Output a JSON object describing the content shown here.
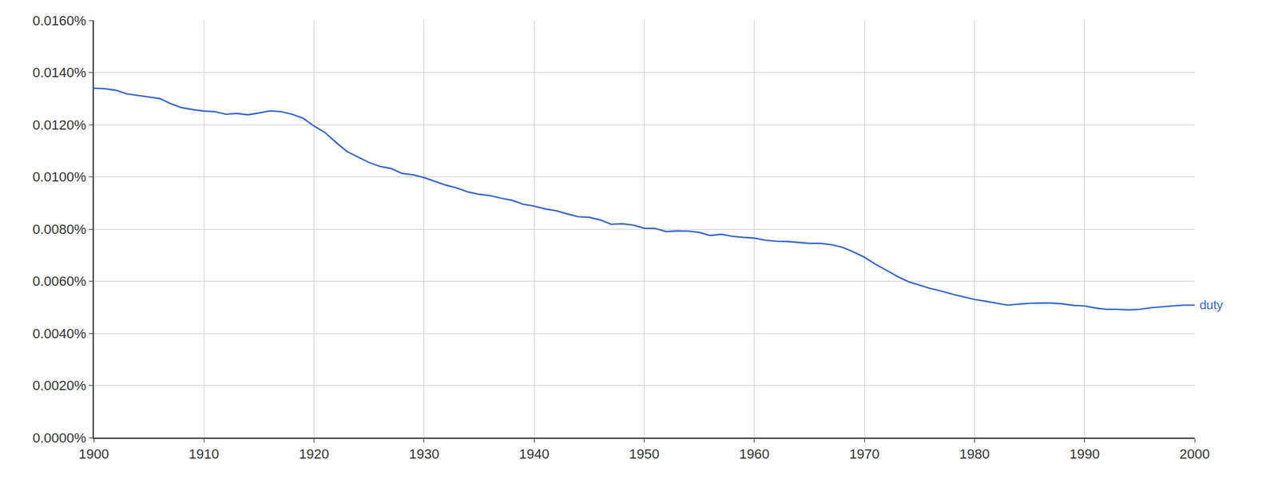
{
  "chart_data": {
    "type": "line",
    "x": [
      1900,
      1901,
      1902,
      1903,
      1904,
      1905,
      1906,
      1907,
      1908,
      1909,
      1910,
      1911,
      1912,
      1913,
      1914,
      1915,
      1916,
      1917,
      1918,
      1919,
      1920,
      1921,
      1922,
      1923,
      1924,
      1925,
      1926,
      1927,
      1928,
      1929,
      1930,
      1931,
      1932,
      1933,
      1934,
      1935,
      1936,
      1937,
      1938,
      1939,
      1940,
      1941,
      1942,
      1943,
      1944,
      1945,
      1946,
      1947,
      1948,
      1949,
      1950,
      1951,
      1952,
      1953,
      1954,
      1955,
      1956,
      1957,
      1958,
      1959,
      1960,
      1961,
      1962,
      1963,
      1964,
      1965,
      1966,
      1967,
      1968,
      1969,
      1970,
      1971,
      1972,
      1973,
      1974,
      1975,
      1976,
      1977,
      1978,
      1979,
      1980,
      1981,
      1982,
      1983,
      1984,
      1985,
      1986,
      1987,
      1988,
      1989,
      1990,
      1991,
      1992,
      1993,
      1994,
      1995,
      1996,
      1997,
      1998,
      1999,
      2000
    ],
    "series": [
      {
        "name": "duty",
        "color": "#3366cc",
        "values": [
          0.0134,
          0.01338,
          0.01332,
          0.01318,
          0.01312,
          0.01306,
          0.013,
          0.0128,
          0.01265,
          0.01258,
          0.01252,
          0.0125,
          0.0124,
          0.01243,
          0.01238,
          0.01245,
          0.01253,
          0.0125,
          0.0124,
          0.01225,
          0.01195,
          0.0117,
          0.01132,
          0.01097,
          0.01075,
          0.01055,
          0.0104,
          0.01032,
          0.01013,
          0.01008,
          0.00997,
          0.00983,
          0.00968,
          0.00957,
          0.00942,
          0.00933,
          0.00928,
          0.00918,
          0.0091,
          0.00895,
          0.00888,
          0.00877,
          0.0087,
          0.00858,
          0.00847,
          0.00845,
          0.00835,
          0.00818,
          0.0082,
          0.00815,
          0.00803,
          0.00802,
          0.0079,
          0.00793,
          0.00792,
          0.00787,
          0.00775,
          0.0078,
          0.00772,
          0.00768,
          0.00765,
          0.00757,
          0.00753,
          0.00752,
          0.00748,
          0.00745,
          0.00745,
          0.0074,
          0.0073,
          0.00712,
          0.00692,
          0.00665,
          0.00642,
          0.00618,
          0.00598,
          0.00585,
          0.00572,
          0.00562,
          0.0055,
          0.0054,
          0.0053,
          0.00523,
          0.00515,
          0.00508,
          0.00512,
          0.00515,
          0.00516,
          0.00516,
          0.00513,
          0.00507,
          0.00505,
          0.00497,
          0.00492,
          0.00492,
          0.0049,
          0.00492,
          0.00498,
          0.00502,
          0.00505,
          0.00508,
          0.00508
        ]
      }
    ],
    "xlim": [
      1900,
      2000
    ],
    "xticks": [
      1900,
      1910,
      1920,
      1930,
      1940,
      1950,
      1960,
      1970,
      1980,
      1990,
      2000
    ],
    "ylim": [
      0,
      0.016
    ],
    "yticks": [
      {
        "value": 0,
        "label": "0.0000%"
      },
      {
        "value": 0.002,
        "label": "0.0020%"
      },
      {
        "value": 0.004,
        "label": "0.0040%"
      },
      {
        "value": 0.006,
        "label": "0.0060%"
      },
      {
        "value": 0.008,
        "label": "0.0080%"
      },
      {
        "value": 0.01,
        "label": "0.0100%"
      },
      {
        "value": 0.012,
        "label": "0.0120%"
      },
      {
        "value": 0.014,
        "label": "0.0140%"
      },
      {
        "value": 0.016,
        "label": "0.0160%"
      }
    ],
    "grid": true
  }
}
